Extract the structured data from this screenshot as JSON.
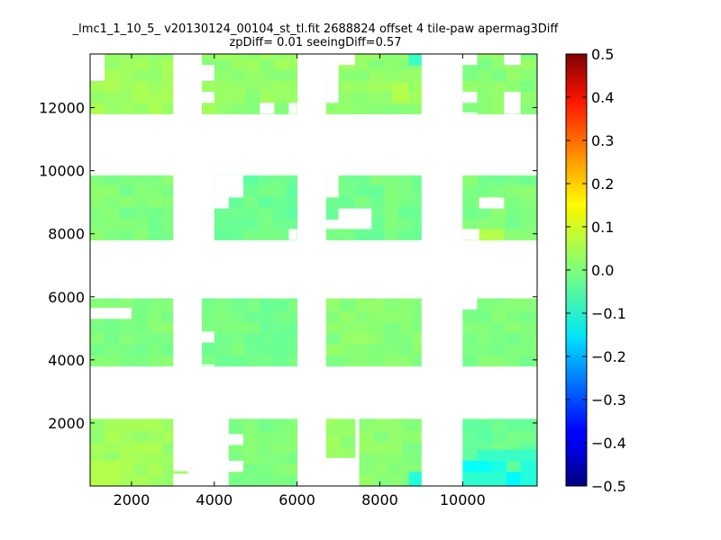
{
  "figure": {
    "title_line1": "_lmc1_1_10_5_ v20130124_00104_st_tl.fit 2688824 offset 4 tile-paw apermag3Diff",
    "title_line2": "zpDiff= 0.01 seeingDiff=0.57"
  },
  "chart_data": {
    "type": "heatmap",
    "title": "_lmc1_1_10_5_ v20130124_00104_st_tl.fit 2688824 offset 4 tile-paw apermag3Diff",
    "subtitle": "zpDiff= 0.01 seeingDiff=0.57",
    "xlabel": "",
    "ylabel": "",
    "xlim": [
      1000,
      11800
    ],
    "ylim": [
      0,
      13700
    ],
    "xticks": [
      2000,
      4000,
      6000,
      8000,
      10000
    ],
    "yticks": [
      2000,
      4000,
      6000,
      8000,
      10000,
      12000
    ],
    "colorbar": {
      "vmin": -0.5,
      "vmax": 0.5,
      "colormap": "jet",
      "ticks": [
        0.5,
        0.4,
        0.3,
        0.2,
        0.1,
        0.0,
        -0.1,
        -0.2,
        -0.3,
        -0.4,
        -0.5
      ]
    },
    "cell_size": [
      350,
      350
    ],
    "blocks": [
      {
        "x": [
          1000,
          3000
        ],
        "y": [
          0,
          2130
        ],
        "value": 0.03
      },
      {
        "x": [
          3000,
          3350
        ],
        "y": [
          400,
          470
        ],
        "value": 0.04
      },
      {
        "x": [
          4350,
          6000
        ],
        "y": [
          0,
          2130
        ],
        "value": 0.0
      },
      {
        "x": [
          6700,
          7400
        ],
        "y": [
          900,
          2130
        ],
        "value": 0.02
      },
      {
        "x": [
          7500,
          9000
        ],
        "y": [
          0,
          2130
        ],
        "value": 0.01
      },
      {
        "x": [
          10000,
          11800
        ],
        "y": [
          0,
          2130
        ],
        "value": -0.02
      },
      {
        "x": [
          1000,
          3000
        ],
        "y": [
          3800,
          5950
        ],
        "value": 0.0
      },
      {
        "x": [
          3700,
          6000
        ],
        "y": [
          3800,
          5950
        ],
        "value": -0.01
      },
      {
        "x": [
          6700,
          9000
        ],
        "y": [
          3800,
          5950
        ],
        "value": 0.01
      },
      {
        "x": [
          10000,
          11800
        ],
        "y": [
          3800,
          5950
        ],
        "value": 0.0
      },
      {
        "x": [
          1000,
          3000
        ],
        "y": [
          7800,
          9850
        ],
        "value": 0.0
      },
      {
        "x": [
          4000,
          6000
        ],
        "y": [
          7800,
          9850
        ],
        "value": -0.02
      },
      {
        "x": [
          6700,
          9000
        ],
        "y": [
          7800,
          9850
        ],
        "value": -0.01
      },
      {
        "x": [
          10000,
          11800
        ],
        "y": [
          7800,
          9850
        ],
        "value": 0.0
      },
      {
        "x": [
          1000,
          3000
        ],
        "y": [
          11800,
          13700
        ],
        "value": 0.03
      },
      {
        "x": [
          3700,
          6000
        ],
        "y": [
          11800,
          13700
        ],
        "value": 0.02
      },
      {
        "x": [
          6700,
          9000
        ],
        "y": [
          11800,
          13700
        ],
        "value": 0.02
      },
      {
        "x": [
          10000,
          11800
        ],
        "y": [
          11800,
          13700
        ],
        "value": 0.01
      }
    ],
    "holes": [
      {
        "x": [
          1000,
          2000
        ],
        "y": [
          5300,
          5650
        ]
      },
      {
        "x": [
          3700,
          4000
        ],
        "y": [
          4550,
          4900
        ]
      },
      {
        "x": [
          3700,
          4000
        ],
        "y": [
          3800,
          3850
        ]
      },
      {
        "x": [
          4350,
          4700
        ],
        "y": [
          1300,
          1650
        ]
      },
      {
        "x": [
          4350,
          4700
        ],
        "y": [
          450,
          800
        ]
      },
      {
        "x": [
          10000,
          10350
        ],
        "y": [
          5600,
          5950
        ]
      },
      {
        "x": [
          6700,
          7000
        ],
        "y": [
          8150,
          8450
        ]
      },
      {
        "x": [
          7000,
          7800
        ],
        "y": [
          8150,
          8800
        ]
      },
      {
        "x": [
          6700,
          7000
        ],
        "y": [
          9150,
          9850
        ]
      },
      {
        "x": [
          4000,
          4700
        ],
        "y": [
          9150,
          9850
        ]
      },
      {
        "x": [
          4000,
          4350
        ],
        "y": [
          8800,
          9150
        ]
      },
      {
        "x": [
          5800,
          6000
        ],
        "y": [
          7800,
          8150
        ]
      },
      {
        "x": [
          10400,
          11000
        ],
        "y": [
          8800,
          9150
        ]
      },
      {
        "x": [
          10000,
          10400
        ],
        "y": [
          7800,
          8150
        ]
      },
      {
        "x": [
          1000,
          1350
        ],
        "y": [
          12850,
          13700
        ]
      },
      {
        "x": [
          3700,
          4000
        ],
        "y": [
          12150,
          12500
        ]
      },
      {
        "x": [
          3700,
          4000
        ],
        "y": [
          12850,
          13350
        ]
      },
      {
        "x": [
          5100,
          5450
        ],
        "y": [
          11800,
          12150
        ]
      },
      {
        "x": [
          5800,
          6000
        ],
        "y": [
          11800,
          12150
        ]
      },
      {
        "x": [
          6700,
          7000
        ],
        "y": [
          12150,
          13700
        ]
      },
      {
        "x": [
          7000,
          7400
        ],
        "y": [
          13350,
          13700
        ]
      },
      {
        "x": [
          10000,
          10350
        ],
        "y": [
          12150,
          12500
        ]
      },
      {
        "x": [
          10000,
          10350
        ],
        "y": [
          13350,
          13700
        ]
      },
      {
        "x": [
          11000,
          11400
        ],
        "y": [
          13350,
          13700
        ]
      },
      {
        "x": [
          11000,
          11400
        ],
        "y": [
          11800,
          12500
        ]
      },
      {
        "x": [
          10000,
          10350
        ],
        "y": [
          11800,
          11850
        ]
      }
    ],
    "highlights": [
      {
        "x": [
          10000,
          10700
        ],
        "y": [
          450,
          800
        ],
        "value": -0.12
      },
      {
        "x": [
          10700,
          11050
        ],
        "y": [
          450,
          800
        ],
        "value": -0.1
      },
      {
        "x": [
          10350,
          11800
        ],
        "y": [
          800,
          1150
        ],
        "value": -0.07
      },
      {
        "x": [
          10000,
          11400
        ],
        "y": [
          0,
          450
        ],
        "value": -0.08
      },
      {
        "x": [
          11050,
          11400
        ],
        "y": [
          0,
          450
        ],
        "value": -0.13
      },
      {
        "x": [
          11400,
          11800
        ],
        "y": [
          0,
          800
        ],
        "value": -0.09
      },
      {
        "x": [
          8700,
          9000
        ],
        "y": [
          0,
          450
        ],
        "value": -0.09
      },
      {
        "x": [
          8700,
          9000
        ],
        "y": [
          13350,
          13700
        ],
        "value": -0.07
      },
      {
        "x": [
          1000,
          1700
        ],
        "y": [
          0,
          800
        ],
        "value": 0.05
      },
      {
        "x": [
          8300,
          8700
        ],
        "y": [
          12150,
          12800
        ],
        "value": 0.05
      },
      {
        "x": [
          10350,
          11000
        ],
        "y": [
          7800,
          8150
        ],
        "value": 0.05
      }
    ]
  }
}
